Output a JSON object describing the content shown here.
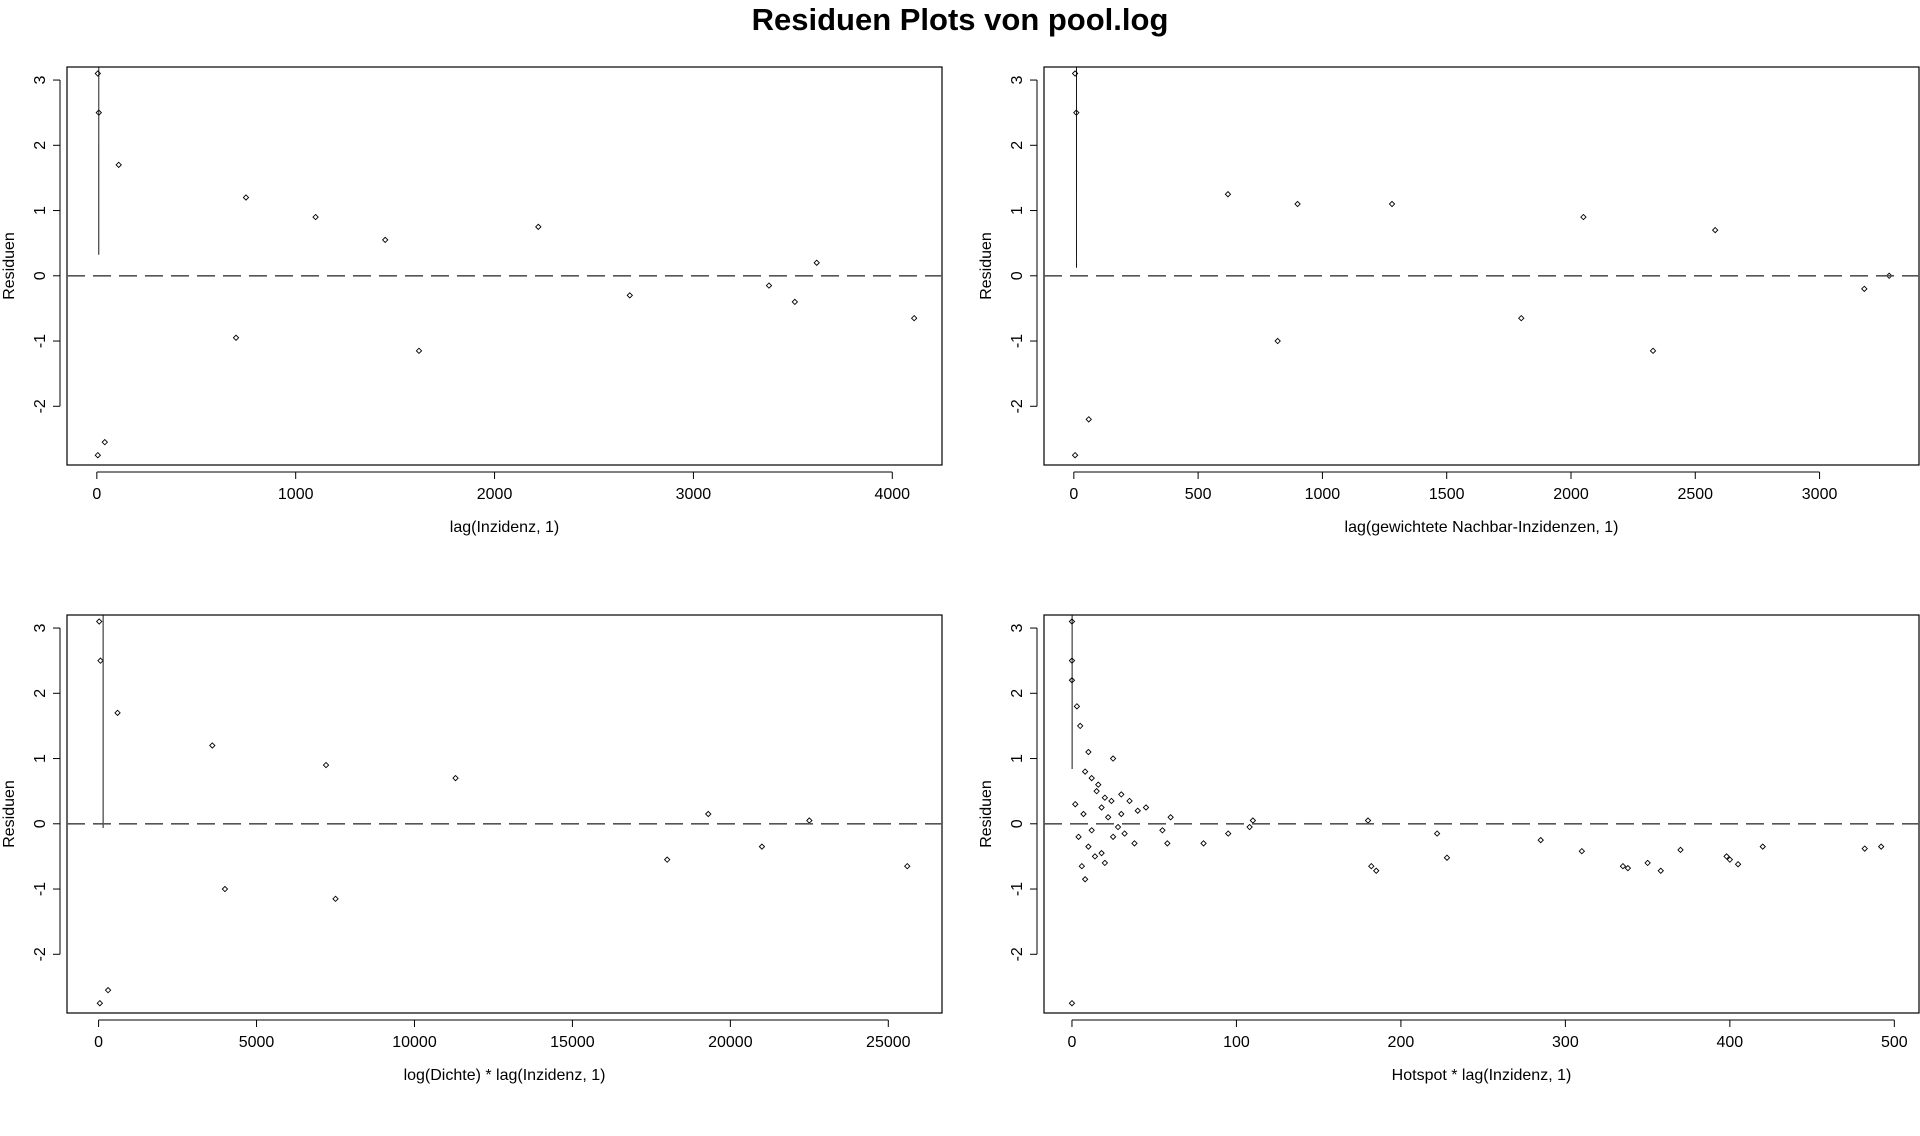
{
  "title": "Residuen Plots von pool.log",
  "chart_data": [
    {
      "type": "scatter",
      "title": "",
      "xlabel": "lag(Inzidenz, 1)",
      "ylabel": "Residuen",
      "xlim": [
        -150,
        4250
      ],
      "ylim": [
        -2.9,
        3.2
      ],
      "xticks": [
        0,
        1000,
        2000,
        3000,
        4000
      ],
      "xtick_labels": [
        "0",
        "1000",
        "2000",
        "3000",
        "4000"
      ],
      "yticks": [
        -2,
        -1,
        0,
        1,
        2,
        3
      ],
      "ytick_labels": [
        "-2",
        "-1",
        "0",
        "1",
        "2",
        "3"
      ],
      "reference_line_y": 0,
      "grid": false,
      "marker": "open diamond",
      "density": {
        "x_scale": 380,
        "x_max": 4100,
        "y_spread": 0.85
      },
      "points": [
        {
          "x": 5,
          "y": 3.1
        },
        {
          "x": 10,
          "y": 2.5
        },
        {
          "x": 5,
          "y": -2.75
        },
        {
          "x": 40,
          "y": -2.55
        },
        {
          "x": 110,
          "y": 1.7
        },
        {
          "x": 750,
          "y": 1.2
        },
        {
          "x": 1100,
          "y": 0.9
        },
        {
          "x": 1620,
          "y": -1.15
        },
        {
          "x": 2220,
          "y": 0.75
        },
        {
          "x": 3620,
          "y": 0.2
        },
        {
          "x": 4110,
          "y": -0.65
        },
        {
          "x": 3380,
          "y": -0.15
        },
        {
          "x": 3510,
          "y": -0.4
        },
        {
          "x": 2680,
          "y": -0.3
        },
        {
          "x": 1450,
          "y": 0.55
        },
        {
          "x": 700,
          "y": -0.95
        }
      ]
    },
    {
      "type": "scatter",
      "title": "",
      "xlabel": "lag(gewichtete Nachbar-Inzidenzen, 1)",
      "ylabel": "Residuen",
      "xlim": [
        -120,
        3400
      ],
      "ylim": [
        -2.9,
        3.2
      ],
      "xticks": [
        0,
        500,
        1000,
        1500,
        2000,
        2500,
        3000
      ],
      "xtick_labels": [
        "0",
        "500",
        "1000",
        "1500",
        "2000",
        "2500",
        "3000"
      ],
      "yticks": [
        -2,
        -1,
        0,
        1,
        2,
        3
      ],
      "ytick_labels": [
        "-2",
        "-1",
        "0",
        "1",
        "2",
        "3"
      ],
      "reference_line_y": 0,
      "grid": false,
      "marker": "open diamond",
      "density": {
        "x_scale": 650,
        "x_max": 3300,
        "y_spread": 0.8
      },
      "points": [
        {
          "x": 5,
          "y": 3.1
        },
        {
          "x": 10,
          "y": 2.5
        },
        {
          "x": 5,
          "y": -2.75
        },
        {
          "x": 60,
          "y": -2.2
        },
        {
          "x": 620,
          "y": 1.25
        },
        {
          "x": 900,
          "y": 1.1
        },
        {
          "x": 1280,
          "y": 1.1
        },
        {
          "x": 2050,
          "y": 0.9
        },
        {
          "x": 2580,
          "y": 0.7
        },
        {
          "x": 2330,
          "y": -1.15
        },
        {
          "x": 820,
          "y": -1.0
        },
        {
          "x": 3280,
          "y": 0.0
        },
        {
          "x": 3180,
          "y": -0.2
        },
        {
          "x": 1800,
          "y": -0.65
        }
      ]
    },
    {
      "type": "scatter",
      "title": "",
      "xlabel": "log(Dichte) * lag(Inzidenz, 1)",
      "ylabel": "Residuen",
      "xlim": [
        -1000,
        26700
      ],
      "ylim": [
        -2.9,
        3.2
      ],
      "xticks": [
        0,
        5000,
        10000,
        15000,
        20000,
        25000
      ],
      "xtick_labels": [
        "0",
        "5000",
        "10000",
        "15000",
        "20000",
        "25000"
      ],
      "yticks": [
        -2,
        -1,
        0,
        1,
        2,
        3
      ],
      "ytick_labels": [
        "-2",
        "-1",
        "0",
        "1",
        "2",
        "3"
      ],
      "reference_line_y": 0,
      "grid": false,
      "marker": "open diamond",
      "density": {
        "x_scale": 2600,
        "x_max": 22500,
        "y_spread": 0.85
      },
      "points": [
        {
          "x": 20,
          "y": 3.1
        },
        {
          "x": 60,
          "y": 2.5
        },
        {
          "x": 40,
          "y": -2.75
        },
        {
          "x": 300,
          "y": -2.55
        },
        {
          "x": 600,
          "y": 1.7
        },
        {
          "x": 3600,
          "y": 1.2
        },
        {
          "x": 7200,
          "y": 0.9
        },
        {
          "x": 11300,
          "y": 0.7
        },
        {
          "x": 7500,
          "y": -1.15
        },
        {
          "x": 22500,
          "y": 0.05
        },
        {
          "x": 25600,
          "y": -0.65
        },
        {
          "x": 19300,
          "y": 0.15
        },
        {
          "x": 21000,
          "y": -0.35
        },
        {
          "x": 18000,
          "y": -0.55
        },
        {
          "x": 4000,
          "y": -1.0
        }
      ]
    },
    {
      "type": "scatter",
      "title": "",
      "xlabel": "Hotspot * lag(Inzidenz, 1)",
      "ylabel": "Residuen",
      "xlim": [
        -17,
        515
      ],
      "ylim": [
        -2.9,
        3.2
      ],
      "xticks": [
        0,
        100,
        200,
        300,
        400,
        500
      ],
      "xtick_labels": [
        "0",
        "100",
        "200",
        "300",
        "400",
        "500"
      ],
      "yticks": [
        -2,
        -1,
        0,
        1,
        2,
        3
      ],
      "ytick_labels": [
        "-2",
        "-1",
        "0",
        "1",
        "2",
        "3"
      ],
      "reference_line_y": 0,
      "grid": false,
      "marker": "open diamond",
      "density": {
        "x_scale": 0,
        "x_max": 0,
        "y_spread": 0.85
      },
      "points": [
        {
          "x": 0,
          "y": 3.1
        },
        {
          "x": 0,
          "y": 2.5
        },
        {
          "x": 0,
          "y": -2.75
        },
        {
          "x": 0,
          "y": 2.2
        },
        {
          "x": 3,
          "y": 1.8
        },
        {
          "x": 5,
          "y": 1.5
        },
        {
          "x": 10,
          "y": 1.1
        },
        {
          "x": 25,
          "y": 1.0
        },
        {
          "x": 8,
          "y": 0.8
        },
        {
          "x": 12,
          "y": 0.7
        },
        {
          "x": 15,
          "y": 0.5
        },
        {
          "x": 20,
          "y": 0.4
        },
        {
          "x": 30,
          "y": 0.45
        },
        {
          "x": 35,
          "y": 0.35
        },
        {
          "x": 40,
          "y": 0.2
        },
        {
          "x": 45,
          "y": 0.25
        },
        {
          "x": 60,
          "y": 0.1
        },
        {
          "x": 18,
          "y": 0.25
        },
        {
          "x": 22,
          "y": 0.1
        },
        {
          "x": 28,
          "y": -0.05
        },
        {
          "x": 32,
          "y": -0.15
        },
        {
          "x": 38,
          "y": -0.3
        },
        {
          "x": 10,
          "y": -0.35
        },
        {
          "x": 14,
          "y": -0.5
        },
        {
          "x": 6,
          "y": -0.65
        },
        {
          "x": 8,
          "y": -0.85
        },
        {
          "x": 18,
          "y": -0.45
        },
        {
          "x": 25,
          "y": -0.2
        },
        {
          "x": 55,
          "y": -0.1
        },
        {
          "x": 58,
          "y": -0.3
        },
        {
          "x": 80,
          "y": -0.3
        },
        {
          "x": 95,
          "y": -0.15
        },
        {
          "x": 108,
          "y": -0.05
        },
        {
          "x": 110,
          "y": 0.05
        },
        {
          "x": 180,
          "y": 0.05
        },
        {
          "x": 182,
          "y": -0.65
        },
        {
          "x": 185,
          "y": -0.72
        },
        {
          "x": 222,
          "y": -0.15
        },
        {
          "x": 228,
          "y": -0.52
        },
        {
          "x": 285,
          "y": -0.25
        },
        {
          "x": 310,
          "y": -0.42
        },
        {
          "x": 335,
          "y": -0.65
        },
        {
          "x": 338,
          "y": -0.68
        },
        {
          "x": 350,
          "y": -0.6
        },
        {
          "x": 358,
          "y": -0.72
        },
        {
          "x": 370,
          "y": -0.4
        },
        {
          "x": 398,
          "y": -0.5
        },
        {
          "x": 400,
          "y": -0.55
        },
        {
          "x": 405,
          "y": -0.62
        },
        {
          "x": 420,
          "y": -0.35
        },
        {
          "x": 482,
          "y": -0.38
        },
        {
          "x": 492,
          "y": -0.35
        },
        {
          "x": 2,
          "y": 0.3
        },
        {
          "x": 4,
          "y": -0.2
        },
        {
          "x": 7,
          "y": 0.15
        },
        {
          "x": 12,
          "y": -0.1
        },
        {
          "x": 16,
          "y": 0.6
        },
        {
          "x": 20,
          "y": -0.6
        },
        {
          "x": 24,
          "y": 0.35
        },
        {
          "x": 30,
          "y": 0.15
        }
      ]
    }
  ]
}
